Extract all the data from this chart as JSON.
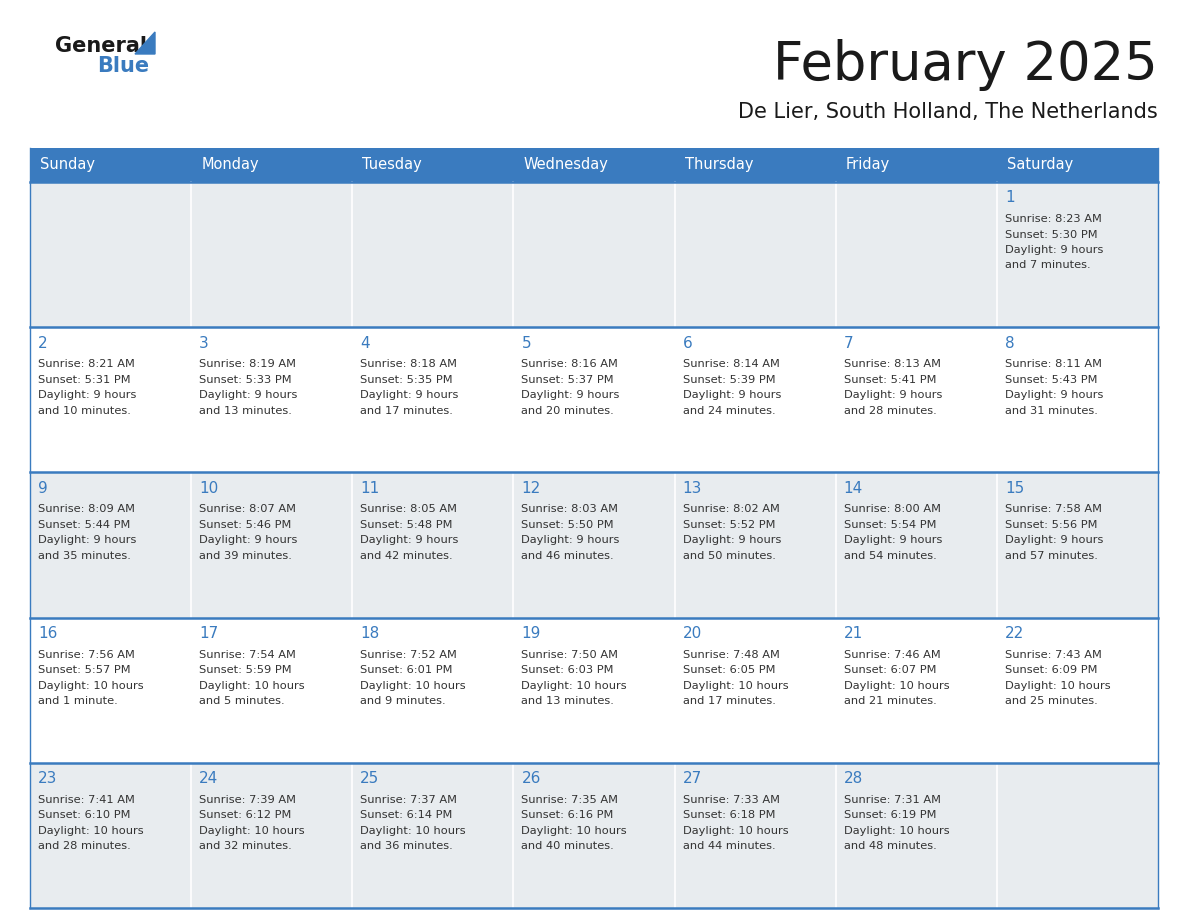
{
  "title": "February 2025",
  "subtitle": "De Lier, South Holland, The Netherlands",
  "header_bg": "#3a7bbf",
  "header_text": "#ffffff",
  "cell_bg_gray": "#e8ecef",
  "cell_bg_white": "#ffffff",
  "border_color": "#3a7bbf",
  "day_headers": [
    "Sunday",
    "Monday",
    "Tuesday",
    "Wednesday",
    "Thursday",
    "Friday",
    "Saturday"
  ],
  "title_color": "#1a1a1a",
  "subtitle_color": "#1a1a1a",
  "day_num_color": "#3a7bbf",
  "text_color": "#333333",
  "logo_general_color": "#1a1a1a",
  "logo_blue_color": "#3a7bbf",
  "logo_triangle_color": "#3a7bbf",
  "calendar_data": [
    [
      {
        "day": "",
        "info": ""
      },
      {
        "day": "",
        "info": ""
      },
      {
        "day": "",
        "info": ""
      },
      {
        "day": "",
        "info": ""
      },
      {
        "day": "",
        "info": ""
      },
      {
        "day": "",
        "info": ""
      },
      {
        "day": "1",
        "info": "Sunrise: 8:23 AM\nSunset: 5:30 PM\nDaylight: 9 hours\nand 7 minutes."
      }
    ],
    [
      {
        "day": "2",
        "info": "Sunrise: 8:21 AM\nSunset: 5:31 PM\nDaylight: 9 hours\nand 10 minutes."
      },
      {
        "day": "3",
        "info": "Sunrise: 8:19 AM\nSunset: 5:33 PM\nDaylight: 9 hours\nand 13 minutes."
      },
      {
        "day": "4",
        "info": "Sunrise: 8:18 AM\nSunset: 5:35 PM\nDaylight: 9 hours\nand 17 minutes."
      },
      {
        "day": "5",
        "info": "Sunrise: 8:16 AM\nSunset: 5:37 PM\nDaylight: 9 hours\nand 20 minutes."
      },
      {
        "day": "6",
        "info": "Sunrise: 8:14 AM\nSunset: 5:39 PM\nDaylight: 9 hours\nand 24 minutes."
      },
      {
        "day": "7",
        "info": "Sunrise: 8:13 AM\nSunset: 5:41 PM\nDaylight: 9 hours\nand 28 minutes."
      },
      {
        "day": "8",
        "info": "Sunrise: 8:11 AM\nSunset: 5:43 PM\nDaylight: 9 hours\nand 31 minutes."
      }
    ],
    [
      {
        "day": "9",
        "info": "Sunrise: 8:09 AM\nSunset: 5:44 PM\nDaylight: 9 hours\nand 35 minutes."
      },
      {
        "day": "10",
        "info": "Sunrise: 8:07 AM\nSunset: 5:46 PM\nDaylight: 9 hours\nand 39 minutes."
      },
      {
        "day": "11",
        "info": "Sunrise: 8:05 AM\nSunset: 5:48 PM\nDaylight: 9 hours\nand 42 minutes."
      },
      {
        "day": "12",
        "info": "Sunrise: 8:03 AM\nSunset: 5:50 PM\nDaylight: 9 hours\nand 46 minutes."
      },
      {
        "day": "13",
        "info": "Sunrise: 8:02 AM\nSunset: 5:52 PM\nDaylight: 9 hours\nand 50 minutes."
      },
      {
        "day": "14",
        "info": "Sunrise: 8:00 AM\nSunset: 5:54 PM\nDaylight: 9 hours\nand 54 minutes."
      },
      {
        "day": "15",
        "info": "Sunrise: 7:58 AM\nSunset: 5:56 PM\nDaylight: 9 hours\nand 57 minutes."
      }
    ],
    [
      {
        "day": "16",
        "info": "Sunrise: 7:56 AM\nSunset: 5:57 PM\nDaylight: 10 hours\nand 1 minute."
      },
      {
        "day": "17",
        "info": "Sunrise: 7:54 AM\nSunset: 5:59 PM\nDaylight: 10 hours\nand 5 minutes."
      },
      {
        "day": "18",
        "info": "Sunrise: 7:52 AM\nSunset: 6:01 PM\nDaylight: 10 hours\nand 9 minutes."
      },
      {
        "day": "19",
        "info": "Sunrise: 7:50 AM\nSunset: 6:03 PM\nDaylight: 10 hours\nand 13 minutes."
      },
      {
        "day": "20",
        "info": "Sunrise: 7:48 AM\nSunset: 6:05 PM\nDaylight: 10 hours\nand 17 minutes."
      },
      {
        "day": "21",
        "info": "Sunrise: 7:46 AM\nSunset: 6:07 PM\nDaylight: 10 hours\nand 21 minutes."
      },
      {
        "day": "22",
        "info": "Sunrise: 7:43 AM\nSunset: 6:09 PM\nDaylight: 10 hours\nand 25 minutes."
      }
    ],
    [
      {
        "day": "23",
        "info": "Sunrise: 7:41 AM\nSunset: 6:10 PM\nDaylight: 10 hours\nand 28 minutes."
      },
      {
        "day": "24",
        "info": "Sunrise: 7:39 AM\nSunset: 6:12 PM\nDaylight: 10 hours\nand 32 minutes."
      },
      {
        "day": "25",
        "info": "Sunrise: 7:37 AM\nSunset: 6:14 PM\nDaylight: 10 hours\nand 36 minutes."
      },
      {
        "day": "26",
        "info": "Sunrise: 7:35 AM\nSunset: 6:16 PM\nDaylight: 10 hours\nand 40 minutes."
      },
      {
        "day": "27",
        "info": "Sunrise: 7:33 AM\nSunset: 6:18 PM\nDaylight: 10 hours\nand 44 minutes."
      },
      {
        "day": "28",
        "info": "Sunrise: 7:31 AM\nSunset: 6:19 PM\nDaylight: 10 hours\nand 48 minutes."
      },
      {
        "day": "",
        "info": ""
      }
    ]
  ]
}
